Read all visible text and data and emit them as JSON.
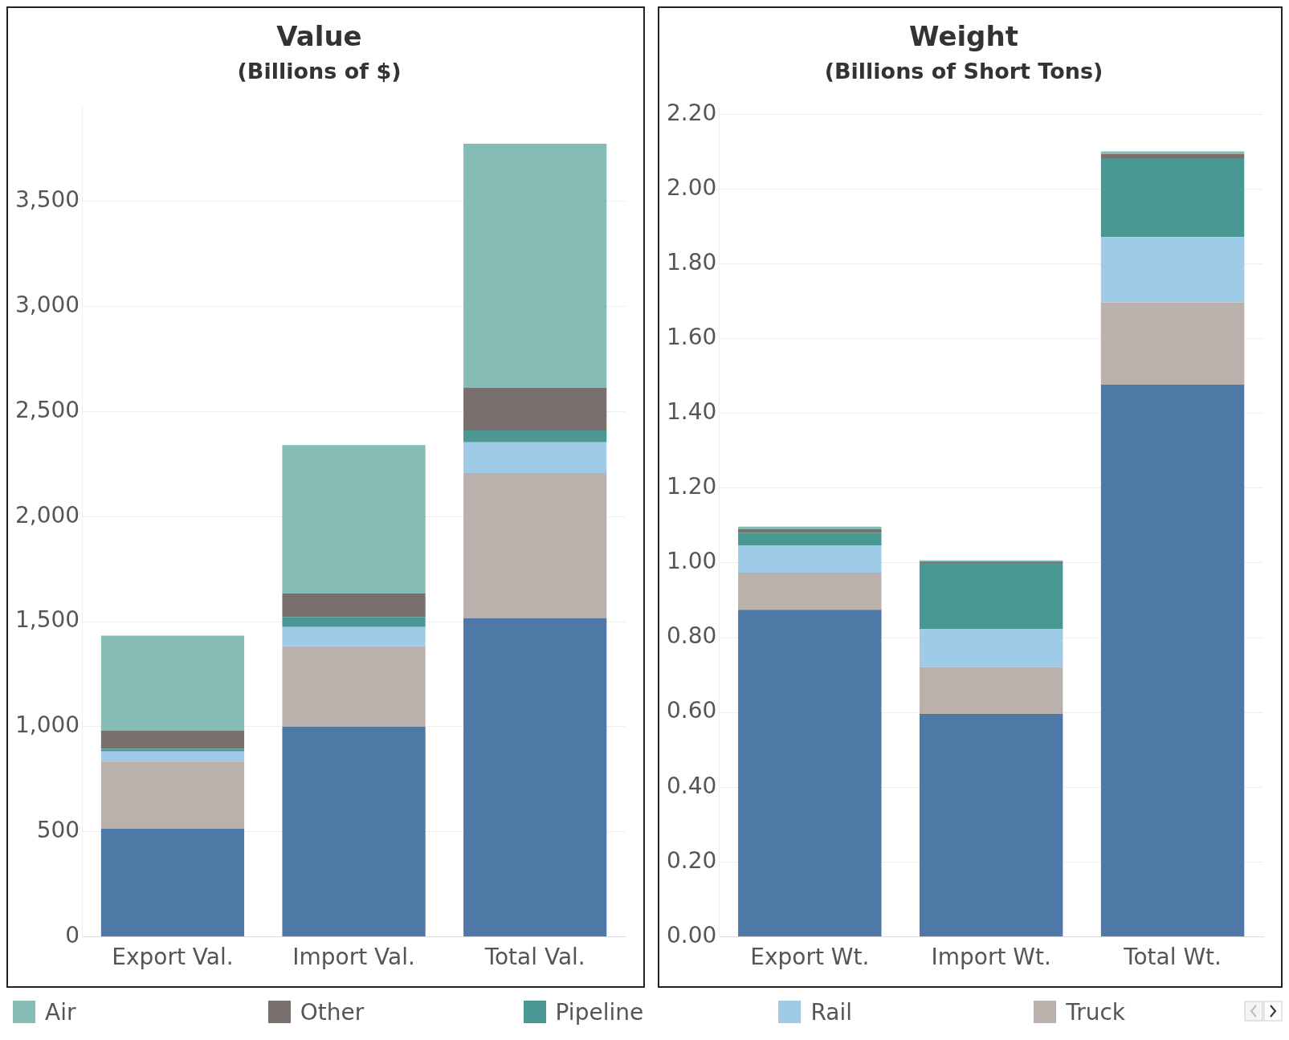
{
  "chart_data": [
    {
      "type": "bar",
      "title": "Value",
      "subtitle": "(Billions of $)",
      "categories": [
        "Export Val.",
        "Import Val.",
        "Total Val."
      ],
      "stacked": true,
      "grid": "y",
      "legend": "bottom",
      "ylim": [
        0,
        3950
      ],
      "yticks": [
        0,
        500,
        {
          "value": 1000,
          "label": "1,000"
        },
        {
          "value": 1500,
          "label": "1,500"
        },
        {
          "value": 2000,
          "label": "2,000"
        },
        {
          "value": 2500,
          "label": "2,500"
        },
        {
          "value": 3000,
          "label": "3,000"
        },
        {
          "value": 3500,
          "label": "3,500"
        }
      ],
      "series": [
        {
          "color": "#4e79a7",
          "values": [
            515,
            1000,
            1516
          ]
        },
        {
          "name": "Truck",
          "color": "#bab0ac",
          "values": [
            319,
            383,
            691
          ]
        },
        {
          "name": "Rail",
          "color": "#a0cbe8",
          "values": [
            48,
            91,
            147
          ]
        },
        {
          "name": "Pipeline",
          "color": "#499894",
          "values": [
            12,
            48,
            56
          ]
        },
        {
          "name": "Other",
          "color": "#79706e",
          "values": [
            88,
            112,
            204
          ]
        },
        {
          "name": "Air",
          "color": "#86bcb6",
          "values": [
            451,
            706,
            1161
          ]
        }
      ]
    },
    {
      "type": "bar",
      "title": "Weight",
      "subtitle": "(Billions of Short Tons)",
      "categories": [
        "Export Wt.",
        "Import Wt.",
        "Total Wt."
      ],
      "stacked": true,
      "grid": "y",
      "ylim": [
        0,
        2.22
      ],
      "yticks": [
        {
          "value": 0,
          "label": "0.00"
        },
        {
          "value": 0.2,
          "label": "0.20"
        },
        {
          "value": 0.4,
          "label": "0.40"
        },
        {
          "value": 0.6,
          "label": "0.60"
        },
        {
          "value": 0.8,
          "label": "0.80"
        },
        {
          "value": 1,
          "label": "1.00"
        },
        {
          "value": 1.2,
          "label": "1.20"
        },
        {
          "value": 1.4,
          "label": "1.40"
        },
        {
          "value": 1.6,
          "label": "1.60"
        },
        {
          "value": 1.8,
          "label": "1.80"
        },
        {
          "value": 2,
          "label": "2.00"
        },
        {
          "value": 2.2,
          "label": "2.20"
        }
      ],
      "series": [
        {
          "color": "#4e79a7",
          "values": [
            0.875,
            0.596,
            1.477
          ]
        },
        {
          "color": "#bab0ac",
          "values": [
            0.099,
            0.125,
            0.22
          ]
        },
        {
          "color": "#a0cbe8",
          "values": [
            0.072,
            0.103,
            0.175
          ]
        },
        {
          "color": "#499894",
          "values": [
            0.035,
            0.176,
            0.211
          ]
        },
        {
          "color": "#79706e",
          "values": [
            0.009,
            0.004,
            0.011
          ]
        },
        {
          "color": "#86bcb6",
          "values": [
            0.007,
            0.003,
            0.007
          ]
        }
      ]
    }
  ]
}
